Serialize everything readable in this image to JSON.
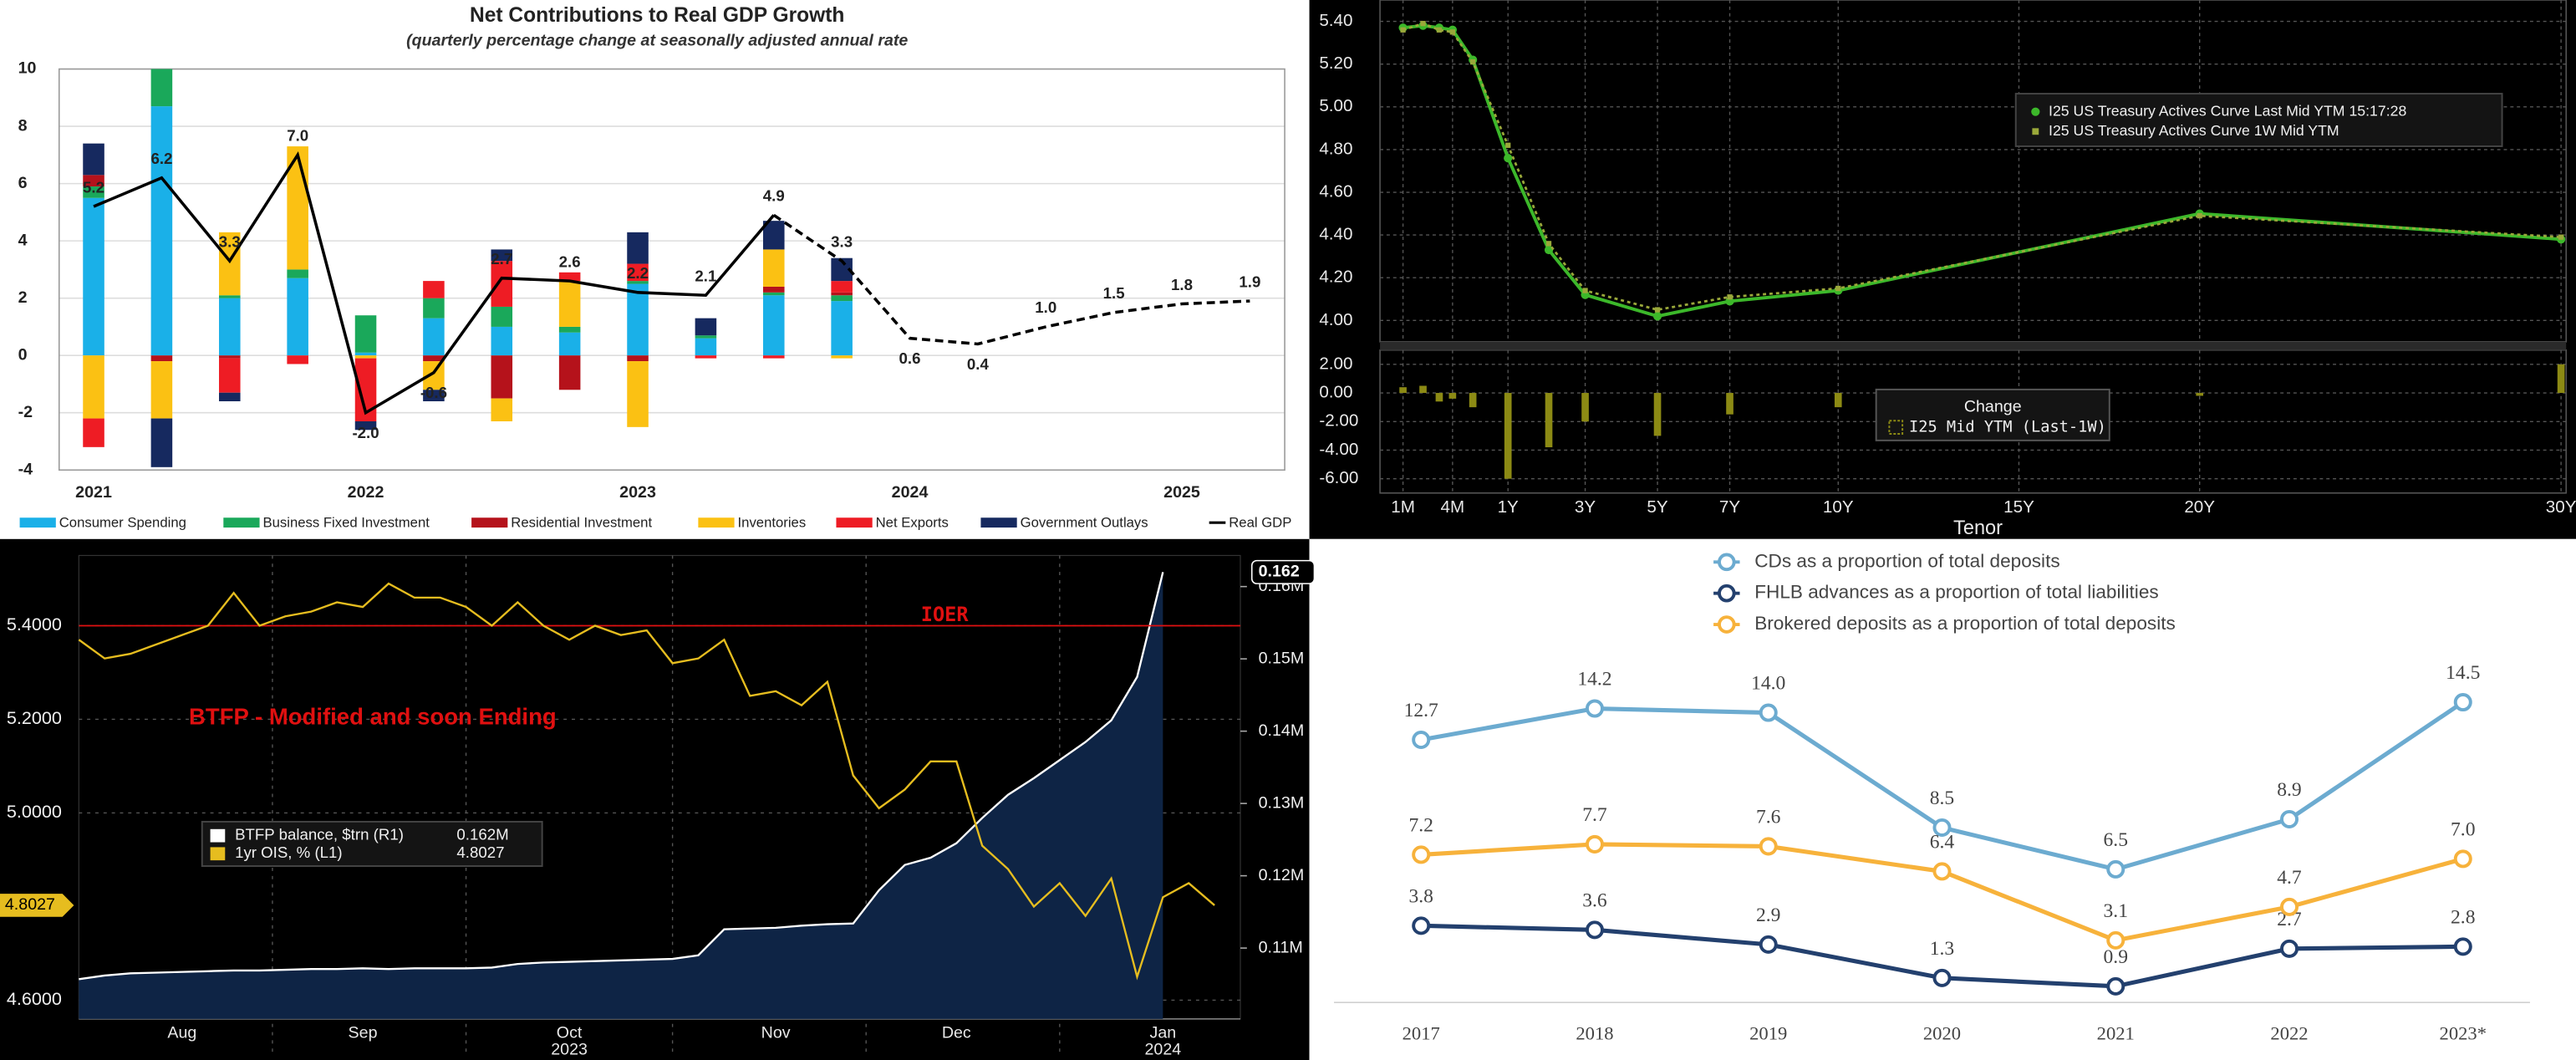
{
  "chart_data": [
    {
      "type": "combo",
      "title": "Net Contributions to Real GDP Growth",
      "subtitle": "(quarterly percentage change at seasonally adjusted annual rate",
      "categories": [
        "2021",
        null,
        null,
        null,
        "2022",
        null,
        null,
        null,
        "2023",
        null,
        null,
        null,
        "2024",
        null,
        null,
        null,
        "2025",
        null
      ],
      "ylim": [
        -4,
        10
      ],
      "yticks": [
        -4,
        -2,
        0,
        2,
        4,
        6,
        8,
        10
      ],
      "grid": true,
      "series": [
        {
          "name": "Consumer Spending",
          "color": "#1ab0e8",
          "values": [
            5.5,
            8.7,
            2.0,
            2.7,
            0.1,
            1.3,
            1.0,
            0.8,
            2.5,
            0.6,
            2.1,
            1.9,
            null,
            null,
            null,
            null,
            null,
            null
          ]
        },
        {
          "name": "Business Fixed Investment",
          "color": "#1aa85a",
          "values": [
            0.4,
            1.3,
            0.1,
            0.3,
            1.3,
            0.7,
            0.7,
            0.2,
            0.1,
            0.1,
            0.1,
            0.2,
            null,
            null,
            null,
            null,
            null,
            null
          ]
        },
        {
          "name": "Residential Investment",
          "color": "#b5121b",
          "values": [
            0.4,
            -0.2,
            -0.1,
            0.0,
            0.0,
            -0.2,
            -1.5,
            -1.2,
            -0.2,
            0.0,
            0.2,
            0.1,
            null,
            null,
            null,
            null,
            null,
            null
          ]
        },
        {
          "name": "Inventories",
          "color": "#fbc113",
          "values": [
            -2.2,
            -2.0,
            2.2,
            4.3,
            -0.1,
            -1.0,
            -0.8,
            1.6,
            -2.3,
            0.0,
            1.3,
            -0.1,
            null,
            null,
            null,
            null,
            null,
            null
          ]
        },
        {
          "name": "Net Exports",
          "color": "#ee1c24",
          "values": [
            -1.0,
            0.0,
            -1.2,
            -0.3,
            -2.2,
            0.6,
            1.6,
            0.3,
            0.6,
            -0.1,
            -0.1,
            0.4,
            null,
            null,
            null,
            null,
            null,
            null
          ]
        },
        {
          "name": "Government Outlays",
          "color": "#16295f",
          "values": [
            1.1,
            -1.7,
            -0.3,
            0.0,
            -0.3,
            -0.4,
            0.4,
            0.0,
            1.1,
            0.6,
            1.0,
            0.8,
            null,
            null,
            null,
            null,
            null,
            null
          ]
        }
      ],
      "line": {
        "name": "Real GDP",
        "color": "#000000",
        "dashed_from": 10,
        "values": [
          5.2,
          6.2,
          3.3,
          7.0,
          -2.0,
          -0.6,
          2.7,
          2.6,
          2.2,
          2.1,
          4.9,
          3.3,
          0.6,
          0.4,
          1.0,
          1.5,
          1.8,
          1.9
        ],
        "value_labels": [
          "5.2",
          "6.2",
          "3.3",
          "7.0",
          "-2.0",
          "-0.6",
          "2.7",
          "2.6",
          "2.2",
          "2.1",
          "4.9",
          "3.3",
          "0.6",
          "0.4",
          "1.0",
          "1.5",
          "1.8",
          "1.9"
        ]
      }
    },
    {
      "type": "curve",
      "xlabel": "Tenor",
      "x": [
        0.0833,
        0.1667,
        0.25,
        0.3333,
        0.5,
        1,
        2,
        3,
        5,
        7,
        10,
        20,
        30
      ],
      "xticks": [
        {
          "value": 0.0833,
          "label": "1M"
        },
        {
          "value": 0.3333,
          "label": "4M"
        },
        {
          "value": 1,
          "label": "1Y"
        },
        {
          "value": 3,
          "label": "3Y"
        },
        {
          "value": 5,
          "label": "5Y"
        },
        {
          "value": 7,
          "label": "7Y"
        },
        {
          "value": 10,
          "label": "10Y"
        },
        {
          "value": 15,
          "label": "15Y"
        },
        {
          "value": 20,
          "label": "20Y"
        },
        {
          "value": 30,
          "label": "30Y"
        }
      ],
      "ylim": [
        3.9,
        5.5
      ],
      "yticks": [
        {
          "value": 4.0,
          "label": "4.00"
        },
        {
          "value": 4.2,
          "label": "4.20"
        },
        {
          "value": 4.4,
          "label": "4.40"
        },
        {
          "value": 4.6,
          "label": "4.60"
        },
        {
          "value": 4.8,
          "label": "4.80"
        },
        {
          "value": 5.0,
          "label": "5.00"
        },
        {
          "value": 5.2,
          "label": "5.20"
        },
        {
          "value": 5.4,
          "label": "5.40"
        }
      ],
      "grid": true,
      "series": [
        {
          "name": "I25 US Treasury Actives Curve Last Mid YTM 15:17:28",
          "color": "#3cb82a",
          "values": [
            5.37,
            5.38,
            5.37,
            5.36,
            5.22,
            4.76,
            4.33,
            4.12,
            4.02,
            4.09,
            4.14,
            4.5,
            4.38
          ]
        },
        {
          "name": "I25 US Treasury Actives Curve 1W Mid YTM",
          "color": "#9aa83a",
          "values": [
            5.36,
            5.39,
            5.36,
            5.35,
            5.21,
            4.82,
            4.36,
            4.14,
            4.05,
            4.11,
            4.15,
            4.49,
            4.39
          ]
        }
      ],
      "lower": {
        "title": "Change",
        "name": "I25 Mid YTM (Last-1W)",
        "color": "#8c8a14",
        "values": [
          0.4,
          0.5,
          -0.6,
          -0.4,
          -1.0,
          -6.0,
          -3.8,
          -2.0,
          -3.0,
          -1.5,
          -1.0,
          -0.2,
          2.0
        ],
        "ylim": [
          -7,
          3
        ],
        "yticks": [
          {
            "value": 2,
            "label": "2.00"
          },
          {
            "value": 0,
            "label": "0.00"
          },
          {
            "value": -2,
            "label": "-2.00"
          },
          {
            "value": -4,
            "label": "-4.00"
          },
          {
            "value": -6,
            "label": "-6.00"
          }
        ]
      }
    },
    {
      "type": "dual",
      "categories": [
        null,
        null,
        null,
        null,
        "Aug",
        null,
        null,
        null,
        null,
        null,
        null,
        "Sep",
        null,
        null,
        null,
        null,
        null,
        null,
        null,
        "Oct",
        null,
        null,
        null,
        null,
        null,
        null,
        null,
        "Nov",
        null,
        null,
        null,
        null,
        null,
        null,
        "Dec",
        null,
        null,
        null,
        null,
        null,
        null,
        null,
        "Jan",
        null,
        null
      ],
      "year_labels": [
        {
          "at": "Oct",
          "label": "2023"
        },
        {
          "at": "Jan",
          "label": "2024"
        }
      ],
      "ylim": [
        4.56,
        5.55
      ],
      "yticks": [
        {
          "value": 4.6,
          "label": "4.6000"
        },
        {
          "value": 5.0,
          "label": "5.0000"
        },
        {
          "value": 5.2,
          "label": "5.2000"
        },
        {
          "value": 5.4,
          "label": "5.4000"
        }
      ],
      "y2lim": [
        0.1002,
        0.1643
      ],
      "y2ticks": [
        {
          "value": 0.11,
          "label": "0.11M"
        },
        {
          "value": 0.12,
          "label": "0.12M"
        },
        {
          "value": 0.13,
          "label": "0.13M"
        },
        {
          "value": 0.14,
          "label": "0.14M"
        },
        {
          "value": 0.15,
          "label": "0.15M"
        },
        {
          "value": 0.16,
          "label": "0.16M"
        }
      ],
      "grid": true,
      "series": [
        {
          "name": "BTFP balance, $trn (R1)",
          "legend_value": "0.162M",
          "color": "#ffffff",
          "fill": "#0e2445",
          "axis": "y2",
          "values": [
            0.1057,
            0.1062,
            0.1065,
            0.1066,
            0.1067,
            0.1068,
            0.1069,
            0.1069,
            0.107,
            0.1071,
            0.1071,
            0.1072,
            0.1071,
            0.1072,
            0.1072,
            0.1072,
            0.1073,
            0.1078,
            0.108,
            0.1081,
            0.1082,
            0.1083,
            0.1084,
            0.1085,
            0.109,
            0.1126,
            0.1127,
            0.1128,
            0.1131,
            0.1133,
            0.1134,
            0.118,
            0.1215,
            0.1225,
            0.1245,
            0.128,
            0.1312,
            0.1335,
            0.136,
            0.1385,
            0.1415,
            0.1475,
            0.162,
            null,
            null
          ]
        },
        {
          "name": "1yr OIS, % (L1)",
          "color": "#e6bd1f",
          "values": [
            5.37,
            5.33,
            5.34,
            5.36,
            5.38,
            5.4,
            5.47,
            5.4,
            5.42,
            5.43,
            5.45,
            5.44,
            5.49,
            5.46,
            5.46,
            5.44,
            5.4,
            5.45,
            5.4,
            5.37,
            5.4,
            5.38,
            5.39,
            5.32,
            5.33,
            5.37,
            5.25,
            5.26,
            5.23,
            5.28,
            5.08,
            5.01,
            5.05,
            5.11,
            5.11,
            4.93,
            4.88,
            4.8,
            4.85,
            4.78,
            4.86,
            4.65,
            4.82,
            4.85,
            4.8027
          ]
        }
      ],
      "reference_lines": [
        {
          "label": "IOER",
          "value": 5.4,
          "color": "#e01010"
        }
      ],
      "annotation": "BTFP - Modified and soon Ending"
    },
    {
      "type": "line",
      "categories": [
        "2017",
        "2018",
        "2019",
        "2020",
        "2021",
        "2022",
        "2023*"
      ],
      "ylim": [
        -2,
        22
      ],
      "series": [
        {
          "name": "CDs as a proportion of total deposits",
          "color": "#6cabd0",
          "values": [
            12.7,
            14.2,
            14.0,
            8.5,
            6.5,
            8.9,
            14.5
          ],
          "value_labels": [
            "12.7",
            "14.2",
            "14.0",
            "8.5",
            "6.5",
            "8.9",
            "14.5"
          ]
        },
        {
          "name": "FHLB advances as a proportion of total liabilities",
          "color": "#23406e",
          "values": [
            3.8,
            3.6,
            2.9,
            1.3,
            0.9,
            2.7,
            2.8
          ],
          "value_labels": [
            "3.8",
            "3.6",
            "2.9",
            "1.3",
            "0.9",
            "2.7",
            "2.8"
          ]
        },
        {
          "name": "Brokered deposits as a proportion of total deposits",
          "color": "#f7b23b",
          "values": [
            7.2,
            7.7,
            7.6,
            6.4,
            3.1,
            4.7,
            7.0
          ],
          "value_labels": [
            "7.2",
            "7.7",
            "7.6",
            "6.4",
            "3.1",
            "4.7",
            "7.0"
          ]
        }
      ]
    }
  ]
}
